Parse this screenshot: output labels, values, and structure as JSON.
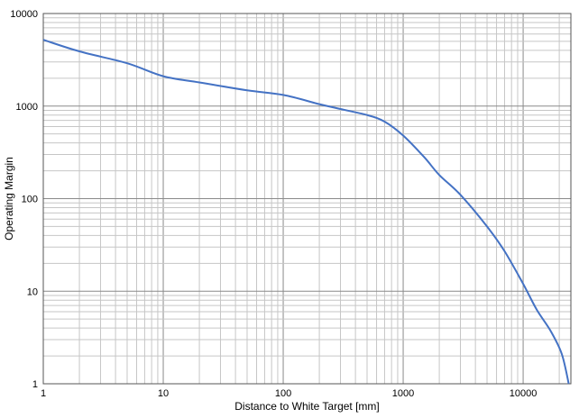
{
  "chart_data": {
    "type": "line",
    "xlabel": "Distance to White Target [mm]",
    "ylabel": "Operating Margin",
    "xscale": "log",
    "yscale": "log",
    "xlim": [
      1,
      25000
    ],
    "ylim": [
      1,
      10000
    ],
    "grid": true,
    "x_ticks": [
      "1",
      "10",
      "100",
      "1000",
      "10000"
    ],
    "y_ticks": [
      "1",
      "10",
      "100",
      "1000",
      "10000"
    ],
    "series_color": "#4472C4",
    "series": [
      {
        "x": [
          1,
          2,
          5,
          10,
          20,
          50,
          100,
          200,
          300,
          500,
          700,
          1000,
          1500,
          2000,
          3000,
          5000,
          7000,
          10000,
          13000,
          17000,
          21000,
          24000
        ],
        "y": [
          5200,
          3900,
          2900,
          2100,
          1800,
          1480,
          1320,
          1050,
          930,
          800,
          680,
          480,
          280,
          180,
          110,
          50,
          27,
          12,
          6.3,
          3.7,
          2.1,
          1
        ]
      }
    ]
  }
}
